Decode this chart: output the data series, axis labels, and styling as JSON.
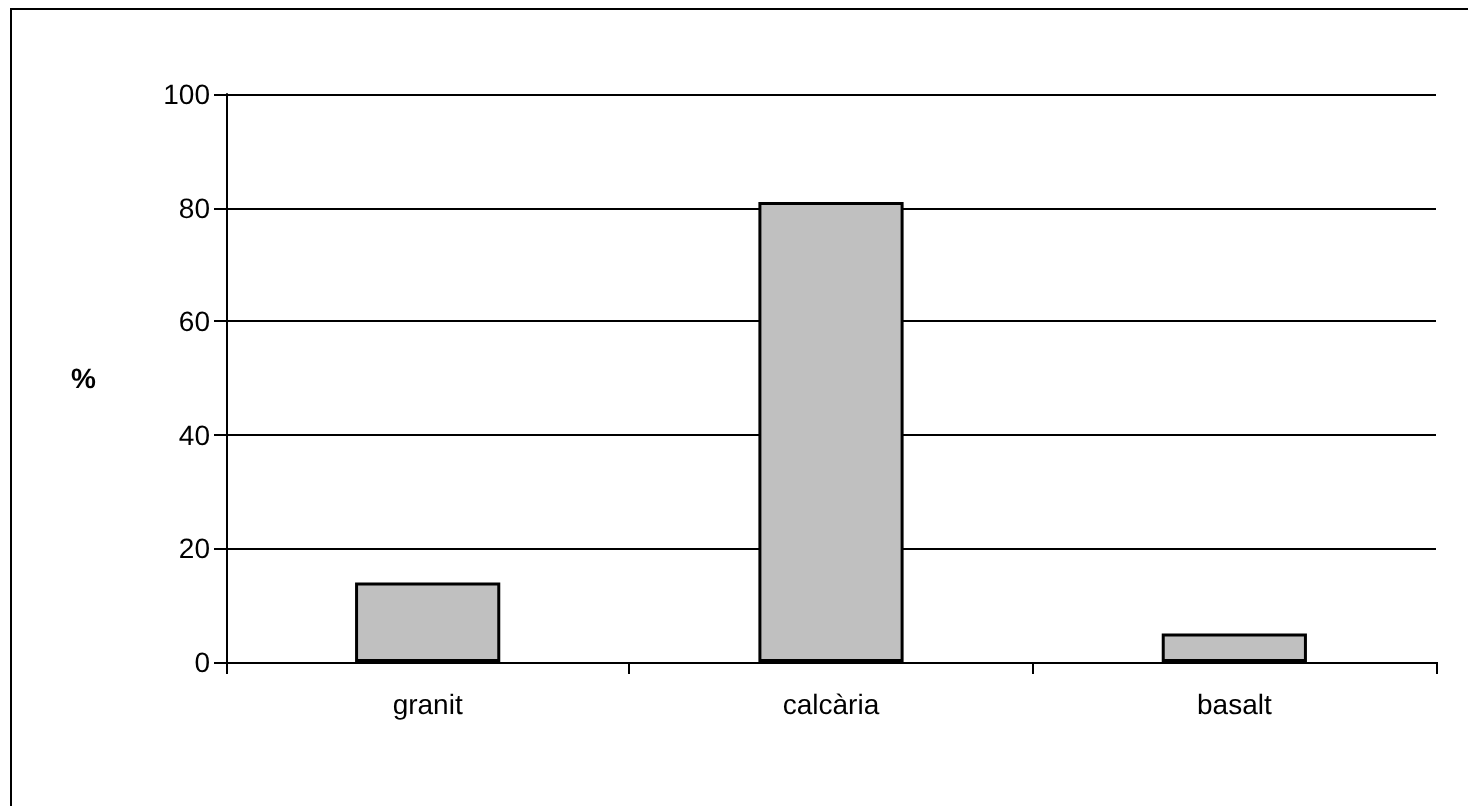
{
  "chart_data": {
    "type": "bar",
    "ylabel": "%",
    "categories": [
      "granit",
      "calcària",
      "basalt"
    ],
    "values": [
      14,
      81,
      5
    ],
    "color": "#c0c0c0",
    "ylim": [
      0,
      100
    ],
    "yticks": [
      0,
      20,
      40,
      60,
      80,
      100
    ],
    "grid": "y"
  }
}
